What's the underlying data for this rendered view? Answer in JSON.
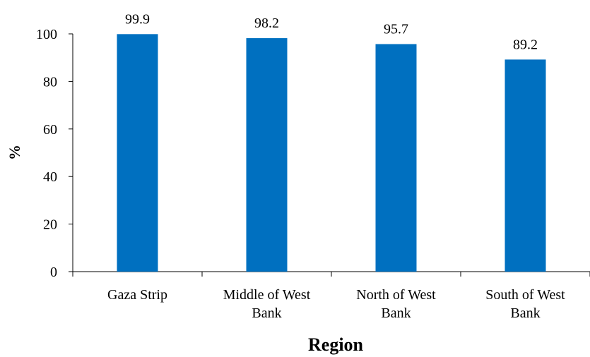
{
  "chart_data": {
    "type": "bar",
    "categories": [
      [
        "Gaza Strip"
      ],
      [
        "Middle of West",
        "Bank"
      ],
      [
        "North of West",
        "Bank"
      ],
      [
        "South of West",
        "Bank"
      ]
    ],
    "values": [
      99.9,
      98.2,
      95.7,
      89.2
    ],
    "value_labels": [
      "99.9",
      "98.2",
      "95.7",
      "89.2"
    ],
    "ylabel": "%",
    "xlabel": "Region",
    "ylim": [
      0,
      100
    ],
    "yticks": [
      "0",
      "20",
      "40",
      "60",
      "80",
      "100"
    ],
    "bar_color": "#0070C0",
    "grid": false,
    "legend": "none"
  }
}
